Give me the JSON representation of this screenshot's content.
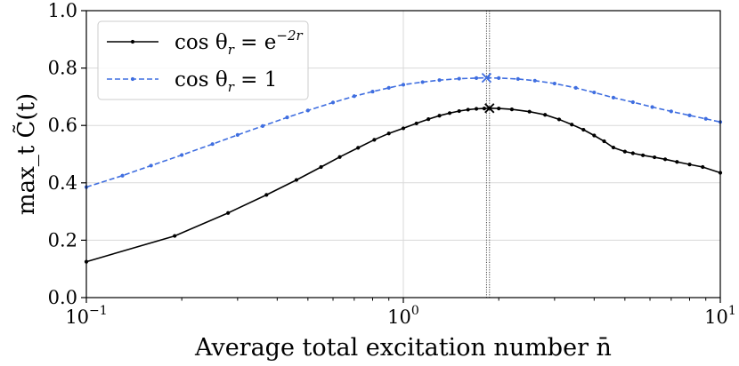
{
  "chart_data": {
    "type": "line",
    "xscale": "log",
    "xlim": [
      0.1,
      10
    ],
    "ylim": [
      0.0,
      1.0
    ],
    "xlabel": "Average total excitation number n̄",
    "ylabel": "max_t C̃(t)",
    "grid": true,
    "legend_position": "top-left",
    "x_ticks": [
      {
        "value": 0.1,
        "base": "10",
        "exp": "−1"
      },
      {
        "value": 1,
        "base": "10",
        "exp": "0"
      },
      {
        "value": 10,
        "base": "10",
        "exp": "1"
      }
    ],
    "y_ticks": [
      0.0,
      0.2,
      0.4,
      0.6,
      0.8,
      1.0
    ],
    "y_tick_labels": [
      "0.0",
      "0.2",
      "0.4",
      "0.6",
      "0.8",
      "1.0"
    ],
    "vertical_lines": [
      1.83,
      1.87
    ],
    "series": [
      {
        "name": "cos θr = e^(−2r)",
        "legend_label": "cos θ",
        "legend_sub": "r",
        "legend_tail": " = e",
        "legend_sup": "−2r",
        "color": "#000000",
        "style": "solid",
        "x": [
          0.1,
          0.19,
          0.28,
          0.37,
          0.46,
          0.55,
          0.63,
          0.72,
          0.81,
          0.9,
          1.0,
          1.1,
          1.2,
          1.3,
          1.4,
          1.5,
          1.6,
          1.7,
          1.8,
          1.87,
          2.0,
          2.2,
          2.5,
          2.8,
          3.1,
          3.4,
          3.7,
          4.0,
          4.3,
          4.6,
          5.0,
          5.3,
          5.7,
          6.2,
          6.7,
          7.3,
          8.0,
          8.8,
          10.0
        ],
        "y": [
          0.125,
          0.215,
          0.295,
          0.358,
          0.41,
          0.455,
          0.49,
          0.522,
          0.55,
          0.572,
          0.59,
          0.607,
          0.622,
          0.634,
          0.643,
          0.65,
          0.655,
          0.658,
          0.659,
          0.66,
          0.659,
          0.656,
          0.648,
          0.637,
          0.621,
          0.603,
          0.585,
          0.565,
          0.545,
          0.523,
          0.509,
          0.503,
          0.496,
          0.489,
          0.482,
          0.473,
          0.464,
          0.455,
          0.435
        ],
        "marker_at_max": {
          "x": 1.87,
          "y": 0.66
        }
      },
      {
        "name": "cos θr = 1",
        "legend_label": "cos θ",
        "legend_sub": "r",
        "legend_tail": " = 1",
        "legend_sup": "",
        "color": "#3f6ee0",
        "style": "dashed",
        "x": [
          0.1,
          0.13,
          0.16,
          0.2,
          0.25,
          0.3,
          0.36,
          0.43,
          0.5,
          0.6,
          0.7,
          0.8,
          0.9,
          1.0,
          1.15,
          1.3,
          1.5,
          1.7,
          1.85,
          2.0,
          2.3,
          2.6,
          3.0,
          3.5,
          4.0,
          4.6,
          5.3,
          6.1,
          7.0,
          8.0,
          9.0,
          10.0
        ],
        "y": [
          0.385,
          0.425,
          0.46,
          0.497,
          0.535,
          0.567,
          0.598,
          0.628,
          0.652,
          0.68,
          0.702,
          0.718,
          0.731,
          0.742,
          0.751,
          0.758,
          0.763,
          0.765,
          0.766,
          0.765,
          0.762,
          0.756,
          0.746,
          0.731,
          0.715,
          0.697,
          0.681,
          0.664,
          0.649,
          0.635,
          0.623,
          0.612
        ],
        "marker_at_max": {
          "x": 1.83,
          "y": 0.766
        }
      }
    ]
  }
}
